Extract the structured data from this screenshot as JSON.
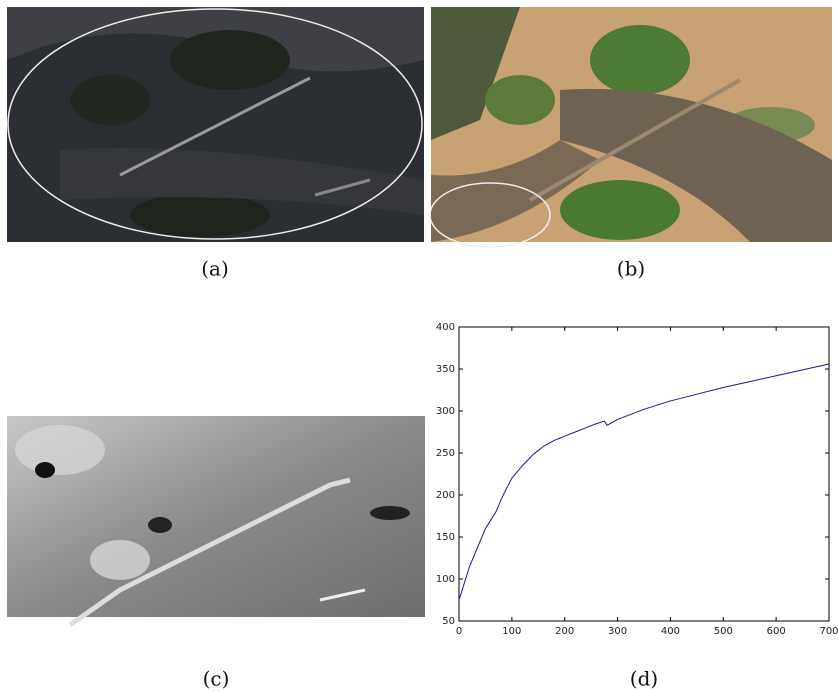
{
  "captions": [
    "(a)",
    "(b)",
    "(c)",
    "(d)"
  ],
  "chart_data": {
    "type": "line",
    "x": [
      0,
      5,
      10,
      20,
      30,
      40,
      50,
      60,
      70,
      80,
      90,
      100,
      120,
      140,
      160,
      180,
      200,
      220,
      240,
      260,
      275,
      280,
      300,
      350,
      400,
      450,
      500,
      550,
      600,
      650,
      700
    ],
    "values": [
      75,
      85,
      95,
      115,
      130,
      145,
      160,
      170,
      180,
      195,
      208,
      220,
      235,
      248,
      258,
      265,
      270,
      275,
      280,
      285,
      288,
      283,
      290,
      302,
      312,
      320,
      328,
      335,
      342,
      349,
      356
    ],
    "color": "#1a1a8c",
    "xlim": [
      0,
      700
    ],
    "xticks": [
      0,
      100,
      200,
      300,
      400,
      500,
      600,
      700
    ],
    "ylim": [
      50,
      400
    ],
    "yticks": [
      50,
      100,
      150,
      200,
      250,
      300,
      350,
      400
    ],
    "grid": false
  }
}
